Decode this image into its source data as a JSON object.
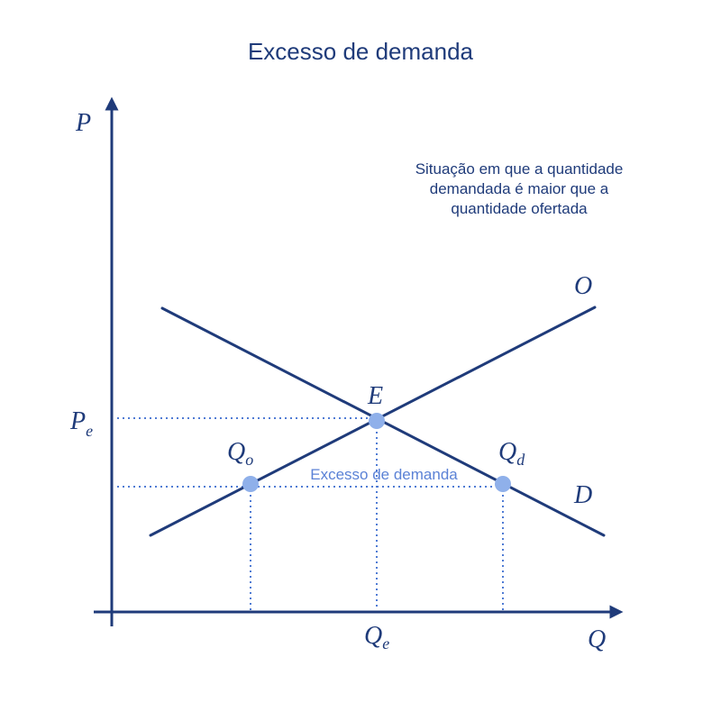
{
  "title": "Excesso de demanda",
  "description": [
    "Situação em que a quantidade",
    "demandada é maior que a",
    "quantidade ofertada"
  ],
  "axes": {
    "y_label": "P",
    "x_label": "Q"
  },
  "curves": {
    "supply_label": "O",
    "demand_label": "D"
  },
  "points": {
    "equilibrium_label": "E",
    "qo_base": "Q",
    "qo_sub": "o",
    "qd_base": "Q",
    "qd_sub": "d"
  },
  "ticks": {
    "pe_base": "P",
    "pe_sub": "e",
    "qe_base": "Q",
    "qe_sub": "e"
  },
  "gap_label": "Excesso de demanda",
  "colors": {
    "line": "#1f3b7a",
    "guide": "#4f7bd4",
    "point": "#8fb0ea",
    "gap_text": "#5b82d6"
  }
}
